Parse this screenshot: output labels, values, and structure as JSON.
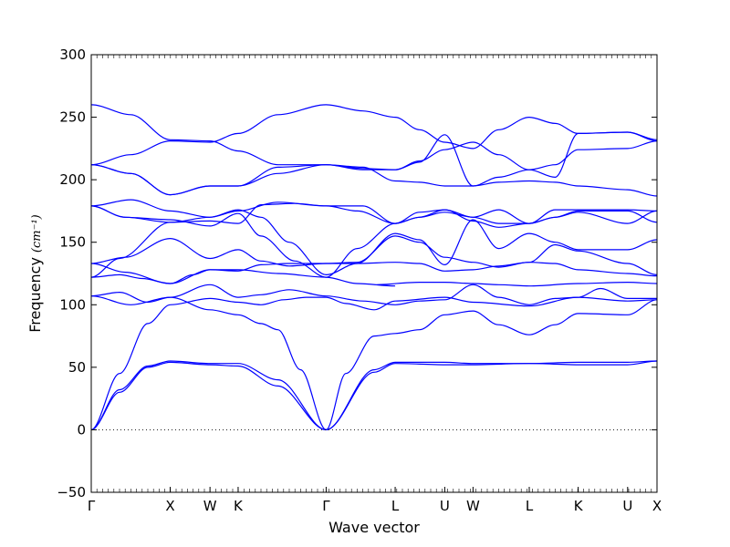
{
  "chart_data": {
    "type": "line",
    "title": "",
    "xlabel": "Wave vector",
    "ylabel": "Frequency",
    "ylabel_unit": "(cm⁻¹)",
    "ylim": [
      -50,
      300
    ],
    "y_ticks": [
      -50,
      0,
      50,
      100,
      150,
      200,
      250,
      300
    ],
    "x_tick_labels": [
      "Γ",
      "X",
      "W",
      "K",
      "Γ",
      "L",
      "U",
      "W",
      "L",
      "K",
      "U",
      "X"
    ],
    "x_tick_positions": [
      0,
      0.1395,
      0.2099,
      0.2596,
      0.4152,
      0.5372,
      0.6248,
      0.6748,
      0.7742,
      0.8607,
      0.9481,
      1.0
    ],
    "xlim": [
      0,
      1
    ],
    "grid": false,
    "zero_line": true,
    "line_color": "#0000ff",
    "series": [
      {
        "x": [
          0,
          0.05,
          0.1,
          0.1395,
          0.2099,
          0.2596,
          0.33,
          0.4152,
          0.5,
          0.5372,
          0.6248,
          0.6748,
          0.7742,
          0.8607,
          0.9481,
          1.0
        ],
        "values": [
          0,
          30,
          50,
          54,
          52,
          51,
          35,
          0,
          46,
          53,
          52,
          52,
          53,
          52,
          52,
          55
        ]
      },
      {
        "x": [
          0,
          0.05,
          0.1,
          0.1395,
          0.2099,
          0.2596,
          0.33,
          0.4152,
          0.5,
          0.5372,
          0.6248,
          0.6748,
          0.7742,
          0.8607,
          0.9481,
          1.0
        ],
        "values": [
          0,
          32,
          51,
          55,
          53,
          53,
          40,
          0,
          48,
          54,
          54,
          53,
          53,
          54,
          54,
          55
        ]
      },
      {
        "x": [
          0,
          0.05,
          0.1,
          0.1395,
          0.2099,
          0.2596,
          0.3,
          0.34,
          0.38,
          0.4152,
          0.45,
          0.5,
          0.5372,
          0.6248,
          0.6748,
          0.7742,
          0.8607,
          0.9481,
          1.0
        ],
        "values": [
          0,
          45,
          85,
          100,
          105,
          102,
          100,
          104,
          106,
          106,
          101,
          96,
          103,
          106,
          102,
          99,
          106,
          103,
          104
        ]
      },
      {
        "x": [
          0,
          0.07,
          0.1395,
          0.2099,
          0.2596,
          0.3,
          0.33,
          0.37,
          0.4152,
          0.45,
          0.5,
          0.5372,
          0.58,
          0.6248,
          0.6748,
          0.72,
          0.7742,
          0.82,
          0.8607,
          0.9481,
          1.0
        ],
        "values": [
          107,
          100,
          106,
          96,
          92,
          85,
          80,
          48,
          0,
          45,
          75,
          77,
          80,
          92,
          95,
          84,
          76,
          84,
          93,
          92,
          104
        ]
      },
      {
        "x": [
          0,
          0.05,
          0.1,
          0.1395,
          0.2099,
          0.2596,
          0.3,
          0.35,
          0.4152,
          0.48,
          0.5372,
          0.58,
          0.6248,
          0.6748,
          0.72,
          0.7742,
          0.82,
          0.8607,
          0.9,
          0.9481,
          1.0
        ],
        "values": [
          107,
          110,
          102,
          106,
          116,
          106,
          108,
          112,
          107,
          103,
          100,
          103,
          104,
          116,
          106,
          100,
          105,
          106,
          113,
          105,
          105
        ]
      },
      {
        "x": [
          0,
          0.05,
          0.09,
          0.1395,
          0.18,
          0.2099,
          0.2596,
          0.33,
          0.4152,
          0.47,
          0.5372,
          0.5,
          0.58,
          0.6248,
          0.6748,
          0.72,
          0.7742,
          0.8607,
          0.9481,
          1.0
        ],
        "values": [
          122,
          124,
          121,
          117,
          124,
          128,
          128,
          125,
          122,
          117,
          115,
          116,
          118,
          118,
          117,
          116,
          115,
          117,
          118,
          117
        ]
      },
      {
        "x": [
          0,
          0.06,
          0.1395,
          0.2099,
          0.2596,
          0.3,
          0.35,
          0.4152,
          0.47,
          0.5372,
          0.58,
          0.6248,
          0.6748,
          0.72,
          0.7742,
          0.82,
          0.8607,
          0.9481,
          1.0
        ],
        "values": [
          133,
          126,
          117,
          128,
          127,
          132,
          133,
          133,
          133,
          134,
          133,
          127,
          128,
          131,
          134,
          133,
          128,
          125,
          123
        ]
      },
      {
        "x": [
          0,
          0.06,
          0.1395,
          0.2099,
          0.2596,
          0.3,
          0.35,
          0.4152,
          0.47,
          0.5372,
          0.58,
          0.6248,
          0.6748,
          0.72,
          0.7742,
          0.82,
          0.8607,
          0.9481,
          1.0
        ],
        "values": [
          133,
          138,
          153,
          137,
          144,
          135,
          131,
          133,
          134,
          155,
          150,
          138,
          134,
          130,
          134,
          148,
          143,
          133,
          124
        ]
      },
      {
        "x": [
          0,
          0.05,
          0.1395,
          0.2099,
          0.2596,
          0.3,
          0.35,
          0.4152,
          0.47,
          0.5372,
          0.58,
          0.6248,
          0.6748,
          0.72,
          0.7742,
          0.82,
          0.8607,
          0.9481,
          1.0
        ],
        "values": [
          122,
          137,
          166,
          170,
          176,
          170,
          150,
          124,
          133,
          157,
          152,
          132,
          168,
          145,
          157,
          150,
          144,
          144,
          152
        ]
      },
      {
        "x": [
          0,
          0.06,
          0.1395,
          0.2099,
          0.2596,
          0.3,
          0.36,
          0.4152,
          0.47,
          0.5372,
          0.58,
          0.6248,
          0.6748,
          0.72,
          0.7742,
          0.82,
          0.8607,
          0.9481,
          1.0
        ],
        "values": [
          179,
          170,
          168,
          163,
          173,
          155,
          135,
          122,
          145,
          165,
          170,
          174,
          170,
          165,
          165,
          170,
          175,
          175,
          166
        ]
      },
      {
        "x": [
          0,
          0.06,
          0.1395,
          0.2099,
          0.2596,
          0.3,
          0.36,
          0.4152,
          0.47,
          0.5372,
          0.58,
          0.6248,
          0.6748,
          0.72,
          0.7742,
          0.82,
          0.8607,
          0.9481,
          1.0
        ],
        "values": [
          179,
          170,
          166,
          167,
          165,
          180,
          181,
          179,
          175,
          165,
          170,
          176,
          170,
          176,
          165,
          170,
          174,
          165,
          175
        ]
      },
      {
        "x": [
          0,
          0.07,
          0.1395,
          0.2099,
          0.2596,
          0.33,
          0.4152,
          0.48,
          0.5372,
          0.58,
          0.6248,
          0.6748,
          0.72,
          0.7742,
          0.82,
          0.8607,
          0.9481,
          1.0
        ],
        "values": [
          179,
          184,
          175,
          170,
          175,
          182,
          179,
          179,
          165,
          174,
          176,
          167,
          162,
          165,
          176,
          176,
          176,
          175
        ]
      },
      {
        "x": [
          0,
          0.07,
          0.1395,
          0.2099,
          0.2596,
          0.33,
          0.4152,
          0.48,
          0.5372,
          0.58,
          0.6248,
          0.6748,
          0.72,
          0.7742,
          0.82,
          0.8607,
          0.9481,
          1.0
        ],
        "values": [
          212,
          205,
          188,
          195,
          195,
          205,
          212,
          210,
          199,
          198,
          195,
          195,
          198,
          199,
          198,
          195,
          192,
          187
        ]
      },
      {
        "x": [
          0,
          0.07,
          0.1395,
          0.2099,
          0.2596,
          0.33,
          0.4152,
          0.48,
          0.5372,
          0.58,
          0.6248,
          0.6748,
          0.72,
          0.7742,
          0.82,
          0.8607,
          0.9481,
          1.0
        ],
        "values": [
          212,
          205,
          188,
          195,
          195,
          210,
          212,
          208,
          208,
          215,
          224,
          230,
          220,
          208,
          212,
          224,
          225,
          231
        ]
      },
      {
        "x": [
          0,
          0.07,
          0.1395,
          0.2099,
          0.2596,
          0.33,
          0.4152,
          0.48,
          0.5372,
          0.58,
          0.6248,
          0.6748,
          0.72,
          0.7742,
          0.82,
          0.8607,
          0.9481,
          1.0
        ],
        "values": [
          212,
          220,
          231,
          230,
          237,
          252,
          260,
          255,
          250,
          240,
          230,
          225,
          240,
          250,
          245,
          237,
          238,
          231
        ]
      },
      {
        "x": [
          0,
          0.07,
          0.1395,
          0.2099,
          0.2596,
          0.33,
          0.4152,
          0.48,
          0.5372,
          0.58,
          0.6248,
          0.6748,
          0.72,
          0.7742,
          0.82,
          0.8607,
          0.9481,
          1.0
        ],
        "values": [
          260,
          252,
          232,
          231,
          223,
          212,
          212,
          209,
          208,
          214,
          236,
          195,
          202,
          208,
          202,
          237,
          238,
          232
        ]
      }
    ]
  }
}
